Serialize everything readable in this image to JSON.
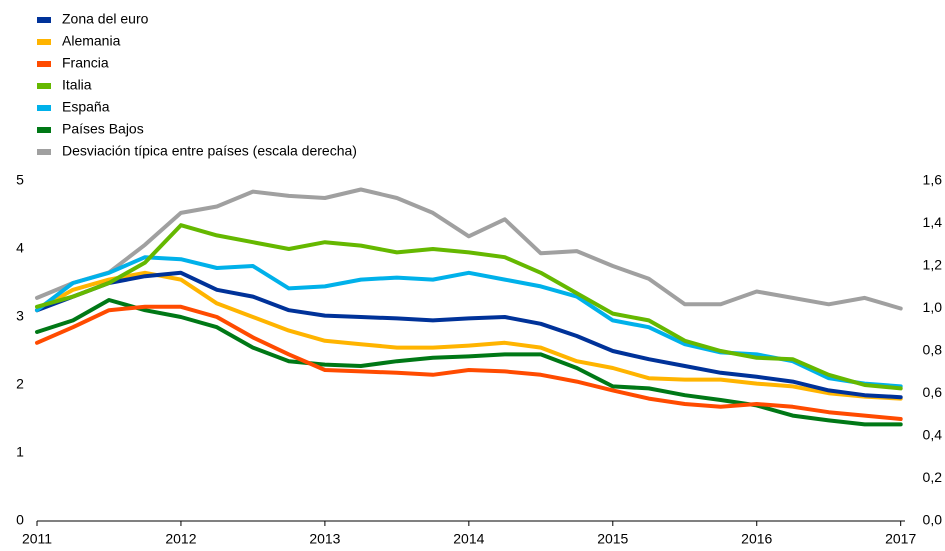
{
  "chart_data": {
    "type": "line",
    "x": [
      2011,
      2011.25,
      2011.5,
      2011.75,
      2012,
      2012.25,
      2012.5,
      2012.75,
      2013,
      2013.25,
      2013.5,
      2013.75,
      2014,
      2014.25,
      2014.5,
      2014.75,
      2015,
      2015.25,
      2015.5,
      2015.75,
      2016,
      2016.25,
      2016.5,
      2016.75,
      2017
    ],
    "series": [
      {
        "name": "Zona del euro",
        "color": "#003299",
        "values": [
          3.1,
          3.3,
          3.5,
          3.6,
          3.65,
          3.4,
          3.3,
          3.1,
          3.02,
          3.0,
          2.98,
          2.95,
          2.98,
          3.0,
          2.9,
          2.72,
          2.5,
          2.38,
          2.28,
          2.18,
          2.12,
          2.05,
          1.92,
          1.85,
          1.82
        ]
      },
      {
        "name": "Alemania",
        "color": "#ffb400",
        "values": [
          3.1,
          3.4,
          3.55,
          3.65,
          3.55,
          3.2,
          3.0,
          2.8,
          2.65,
          2.6,
          2.55,
          2.55,
          2.58,
          2.62,
          2.55,
          2.35,
          2.25,
          2.1,
          2.08,
          2.08,
          2.02,
          1.98,
          1.88,
          1.83,
          1.8
        ]
      },
      {
        "name": "Francia",
        "color": "#ff4b00",
        "values": [
          2.62,
          2.85,
          3.1,
          3.15,
          3.15,
          3.0,
          2.7,
          2.45,
          2.22,
          2.2,
          2.18,
          2.15,
          2.22,
          2.2,
          2.15,
          2.05,
          1.92,
          1.8,
          1.72,
          1.68,
          1.72,
          1.68,
          1.6,
          1.55,
          1.5
        ]
      },
      {
        "name": "Italia",
        "color": "#65b800",
        "values": [
          3.15,
          3.3,
          3.5,
          3.8,
          4.35,
          4.2,
          4.1,
          4.0,
          4.1,
          4.05,
          3.95,
          4.0,
          3.95,
          3.88,
          3.65,
          3.35,
          3.05,
          2.95,
          2.65,
          2.5,
          2.4,
          2.38,
          2.15,
          2.0,
          1.95
        ]
      },
      {
        "name": "España",
        "color": "#00b1ea",
        "values": [
          3.1,
          3.5,
          3.65,
          3.88,
          3.85,
          3.72,
          3.75,
          3.42,
          3.45,
          3.55,
          3.58,
          3.55,
          3.65,
          3.55,
          3.45,
          3.3,
          2.95,
          2.85,
          2.6,
          2.48,
          2.45,
          2.35,
          2.1,
          2.02,
          1.98
        ]
      },
      {
        "name": "Países Bajos",
        "color": "#007816",
        "values": [
          2.78,
          2.95,
          3.25,
          3.1,
          3.0,
          2.85,
          2.55,
          2.35,
          2.3,
          2.28,
          2.35,
          2.4,
          2.42,
          2.45,
          2.45,
          2.25,
          1.98,
          1.95,
          1.85,
          1.78,
          1.7,
          1.55,
          1.48,
          1.42,
          1.42
        ]
      },
      {
        "name": "Desviación típica entre países (escala derecha)",
        "color": "#a0a0a0",
        "axis": "y2",
        "values": [
          1.05,
          1.12,
          1.17,
          1.3,
          1.45,
          1.48,
          1.55,
          1.53,
          1.52,
          1.56,
          1.52,
          1.45,
          1.34,
          1.42,
          1.26,
          1.27,
          1.2,
          1.14,
          1.02,
          1.02,
          1.08,
          1.05,
          1.02,
          1.05,
          1.0
        ]
      }
    ],
    "xlim": [
      2011,
      2017.03
    ],
    "xticks": [
      2011,
      2012,
      2013,
      2014,
      2015,
      2016,
      2017
    ],
    "ylim": [
      0,
      5
    ],
    "yticks": [
      0,
      1,
      2,
      3,
      4,
      5
    ],
    "y2lim": [
      0,
      1.6
    ],
    "y2ticks": [
      {
        "value": 0,
        "label": "0,0"
      },
      {
        "value": 0.2,
        "label": "0,2"
      },
      {
        "value": 0.4,
        "label": "0,4"
      },
      {
        "value": 0.6,
        "label": "0,6"
      },
      {
        "value": 0.8,
        "label": "0,8"
      },
      {
        "value": 1.0,
        "label": "1,0"
      },
      {
        "value": 1.2,
        "label": "1,2"
      },
      {
        "value": 1.4,
        "label": "1,4"
      },
      {
        "value": 1.6,
        "label": "1,6"
      }
    ],
    "grid": false,
    "legend": "top-left"
  }
}
